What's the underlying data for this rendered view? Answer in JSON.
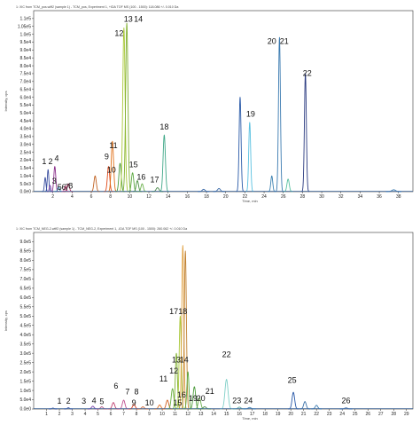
{
  "chart_data": [
    {
      "type": "line",
      "header": "1: XIC from TCM_pos.wiff2 (sample 1) - TCM_pos, Experiment 1, +IDA TOF MS (100 - 1500): 118.086 +/- 0.010 Da",
      "xlabel": "Time, min",
      "ylabel": "Intensity, cps",
      "xlim": [
        0,
        39.5
      ],
      "ylim": [
        0,
        115000.0
      ],
      "x_ticks": [
        2,
        4,
        6,
        8,
        10,
        12,
        14,
        16,
        18,
        20,
        22,
        24,
        26,
        28,
        30,
        32,
        34,
        36,
        38
      ],
      "y_ticks": [
        {
          "value": 0,
          "label": "0.0e0"
        },
        {
          "value": 5000,
          "label": "5.0e3"
        },
        {
          "value": 10000,
          "label": "1.0e4"
        },
        {
          "value": 15000,
          "label": "1.5e4"
        },
        {
          "value": 20000,
          "label": "2.0e4"
        },
        {
          "value": 25000,
          "label": "2.5e4"
        },
        {
          "value": 30000,
          "label": "3.0e4"
        },
        {
          "value": 35000,
          "label": "3.5e4"
        },
        {
          "value": 40000,
          "label": "4.0e4"
        },
        {
          "value": 45000,
          "label": "4.5e4"
        },
        {
          "value": 50000,
          "label": "5.0e4"
        },
        {
          "value": 55000,
          "label": "5.5e4"
        },
        {
          "value": 60000,
          "label": "6.0e4"
        },
        {
          "value": 65000,
          "label": "6.5e4"
        },
        {
          "value": 70000,
          "label": "7.0e4"
        },
        {
          "value": 75000,
          "label": "7.5e4"
        },
        {
          "value": 80000,
          "label": "8.0e4"
        },
        {
          "value": 85000,
          "label": "8.5e4"
        },
        {
          "value": 90000,
          "label": "9.0e4"
        },
        {
          "value": 95000,
          "label": "9.5e4"
        },
        {
          "value": 100000,
          "label": "1.0e5"
        },
        {
          "value": 105000,
          "label": "1.05e5"
        },
        {
          "value": 110000,
          "label": "1.1e5"
        }
      ],
      "peaks": [
        {
          "x": 1.2,
          "h": 9000,
          "w": 0.08,
          "color": "#3b4fa0"
        },
        {
          "x": 1.5,
          "h": 14000,
          "w": 0.08,
          "color": "#3b4fa0"
        },
        {
          "x": 1.7,
          "h": 4000,
          "w": 0.08,
          "color": "#7a3fa8"
        },
        {
          "x": 2.2,
          "h": 16000,
          "w": 0.1,
          "color": "#8a2f8a"
        },
        {
          "x": 2.6,
          "h": 3000,
          "w": 0.1,
          "color": "#2f7fa8"
        },
        {
          "x": 3.3,
          "h": 3500,
          "w": 0.1,
          "color": "#d04080"
        },
        {
          "x": 3.6,
          "h": 5000,
          "w": 0.12,
          "color": "#b03060"
        },
        {
          "x": 6.4,
          "h": 10000,
          "w": 0.12,
          "color": "#c06020"
        },
        {
          "x": 7.8,
          "h": 16000,
          "w": 0.12,
          "color": "#e04818"
        },
        {
          "x": 8.2,
          "h": 32000,
          "w": 0.12,
          "color": "#e07018"
        },
        {
          "x": 9.0,
          "h": 18000,
          "w": 0.12,
          "color": "#4a9a3a"
        },
        {
          "x": 9.4,
          "h": 104000,
          "w": 0.12,
          "color": "#a8c838"
        },
        {
          "x": 9.7,
          "h": 107000,
          "w": 0.12,
          "color": "#80b030"
        },
        {
          "x": 10.3,
          "h": 12000,
          "w": 0.12,
          "color": "#5aa840"
        },
        {
          "x": 10.8,
          "h": 7000,
          "w": 0.12,
          "color": "#4a9040"
        },
        {
          "x": 11.3,
          "h": 5000,
          "w": 0.12,
          "color": "#6ab04a"
        },
        {
          "x": 12.9,
          "h": 2500,
          "w": 0.15,
          "color": "#4a8a4a"
        },
        {
          "x": 13.6,
          "h": 36000,
          "w": 0.12,
          "color": "#40a888"
        },
        {
          "x": 17.7,
          "h": 1500,
          "w": 0.15,
          "color": "#3a6aa8"
        },
        {
          "x": 19.3,
          "h": 2000,
          "w": 0.15,
          "color": "#3a6aa8"
        },
        {
          "x": 21.5,
          "h": 60000,
          "w": 0.1,
          "color": "#2a5aa8"
        },
        {
          "x": 22.5,
          "h": 44000,
          "w": 0.1,
          "color": "#58c0e0"
        },
        {
          "x": 24.8,
          "h": 10000,
          "w": 0.1,
          "color": "#3a80b0"
        },
        {
          "x": 25.6,
          "h": 98000,
          "w": 0.1,
          "color": "#3a7ab0"
        },
        {
          "x": 26.5,
          "h": 8000,
          "w": 0.12,
          "color": "#58c0a0"
        },
        {
          "x": 28.3,
          "h": 75000,
          "w": 0.1,
          "color": "#2a3a80"
        },
        {
          "x": 37.5,
          "h": 1200,
          "w": 0.2,
          "color": "#3a7ab0"
        }
      ],
      "annotations": [
        {
          "text": "1",
          "x": 1.1,
          "y": 17500
        },
        {
          "text": "2",
          "x": 1.75,
          "y": 17500
        },
        {
          "text": "3",
          "x": 2.15,
          "y": 5000
        },
        {
          "text": "4",
          "x": 2.4,
          "y": 19500
        },
        {
          "text": "5",
          "x": 2.7,
          "y": 1200
        },
        {
          "text": "6",
          "x": 3.15,
          "y": 1200
        },
        {
          "text": "7",
          "x": 3.5,
          "y": 1200
        },
        {
          "text": "8",
          "x": 3.85,
          "y": 2000
        },
        {
          "text": "9",
          "x": 7.6,
          "y": 20500
        },
        {
          "text": "10",
          "x": 8.1,
          "y": 12000
        },
        {
          "text": "11",
          "x": 8.3,
          "y": 27500
        },
        {
          "text": "12",
          "x": 8.9,
          "y": 99000
        },
        {
          "text": "13",
          "x": 9.85,
          "y": 108000
        },
        {
          "text": "14",
          "x": 10.9,
          "y": 108000
        },
        {
          "text": "15",
          "x": 10.4,
          "y": 15500
        },
        {
          "text": "16",
          "x": 11.2,
          "y": 7500
        },
        {
          "text": "17",
          "x": 12.6,
          "y": 6000
        },
        {
          "text": "18",
          "x": 13.6,
          "y": 39500
        },
        {
          "text": "19",
          "x": 22.6,
          "y": 47500
        },
        {
          "text": "20",
          "x": 24.8,
          "y": 94000
        },
        {
          "text": "21",
          "x": 26.1,
          "y": 94000
        },
        {
          "text": "22",
          "x": 28.5,
          "y": 73500
        }
      ]
    },
    {
      "type": "line",
      "header": "1: XIC from TCM_NEG-2.wiff2 (sample 1) - TCM_NEG-2, Experiment 1, -IDA TOF MS (100 - 1500): 260.062 +/- 0.010 Da",
      "xlabel": "Time, min",
      "ylabel": "Intensity, cps",
      "xlim": [
        0,
        29.5
      ],
      "ylim": [
        0,
        950000.0
      ],
      "x_ticks": [
        1,
        2,
        3,
        4,
        5,
        6,
        7,
        8,
        9,
        10,
        11,
        12,
        13,
        14,
        15,
        16,
        17,
        18,
        19,
        20,
        21,
        22,
        23,
        24,
        25,
        26,
        27,
        28,
        29
      ],
      "y_ticks": [
        {
          "value": 0,
          "label": "0.0e0"
        },
        {
          "value": 50000,
          "label": "5.0e4"
        },
        {
          "value": 100000,
          "label": "1.0e5"
        },
        {
          "value": 150000,
          "label": "1.5e5"
        },
        {
          "value": 200000,
          "label": "2.0e5"
        },
        {
          "value": 250000,
          "label": "2.5e5"
        },
        {
          "value": 300000,
          "label": "3.0e5"
        },
        {
          "value": 350000,
          "label": "3.5e5"
        },
        {
          "value": 400000,
          "label": "4.0e5"
        },
        {
          "value": 450000,
          "label": "4.5e5"
        },
        {
          "value": 500000,
          "label": "5.0e5"
        },
        {
          "value": 550000,
          "label": "5.5e5"
        },
        {
          "value": 600000,
          "label": "6.0e5"
        },
        {
          "value": 650000,
          "label": "6.5e5"
        },
        {
          "value": 700000,
          "label": "7.0e5"
        },
        {
          "value": 750000,
          "label": "7.5e5"
        },
        {
          "value": 800000,
          "label": "8.0e5"
        },
        {
          "value": 850000,
          "label": "8.5e5"
        },
        {
          "value": 900000,
          "label": "9.0e5"
        }
      ],
      "peaks": [
        {
          "x": 1.5,
          "h": 5000,
          "w": 0.08,
          "color": "#3b4fa0"
        },
        {
          "x": 2.7,
          "h": 7000,
          "w": 0.08,
          "color": "#3b4fa0"
        },
        {
          "x": 4.6,
          "h": 15000,
          "w": 0.1,
          "color": "#7a3fa8"
        },
        {
          "x": 5.3,
          "h": 12000,
          "w": 0.1,
          "color": "#b05080"
        },
        {
          "x": 6.2,
          "h": 35000,
          "w": 0.1,
          "color": "#c04070"
        },
        {
          "x": 7.0,
          "h": 48000,
          "w": 0.1,
          "color": "#c05090"
        },
        {
          "x": 7.8,
          "h": 25000,
          "w": 0.1,
          "color": "#e04020"
        },
        {
          "x": 8.5,
          "h": 12000,
          "w": 0.1,
          "color": "#d06030"
        },
        {
          "x": 9.8,
          "h": 22000,
          "w": 0.1,
          "color": "#e07020"
        },
        {
          "x": 10.4,
          "h": 48000,
          "w": 0.1,
          "color": "#d06020"
        },
        {
          "x": 10.8,
          "h": 110000,
          "w": 0.1,
          "color": "#6ab040"
        },
        {
          "x": 11.1,
          "h": 300000,
          "w": 0.08,
          "color": "#80b030"
        },
        {
          "x": 11.4,
          "h": 500000,
          "w": 0.08,
          "color": "#a8c838"
        },
        {
          "x": 11.6,
          "h": 880000,
          "w": 0.08,
          "color": "#e0a040"
        },
        {
          "x": 11.8,
          "h": 850000,
          "w": 0.08,
          "color": "#c08030"
        },
        {
          "x": 12.0,
          "h": 200000,
          "w": 0.08,
          "color": "#5aa840"
        },
        {
          "x": 12.5,
          "h": 120000,
          "w": 0.1,
          "color": "#4a9a3a"
        },
        {
          "x": 12.9,
          "h": 60000,
          "w": 0.1,
          "color": "#6ab04a"
        },
        {
          "x": 13.3,
          "h": 12000,
          "w": 0.12,
          "color": "#4a8a4a"
        },
        {
          "x": 15.0,
          "h": 160000,
          "w": 0.12,
          "color": "#80d0c8"
        },
        {
          "x": 16.0,
          "h": 10000,
          "w": 0.12,
          "color": "#58a8a0"
        },
        {
          "x": 16.8,
          "h": 8000,
          "w": 0.12,
          "color": "#3a80b0"
        },
        {
          "x": 20.2,
          "h": 90000,
          "w": 0.1,
          "color": "#2a5aa8"
        },
        {
          "x": 21.1,
          "h": 40000,
          "w": 0.1,
          "color": "#3a70a8"
        },
        {
          "x": 22.0,
          "h": 20000,
          "w": 0.1,
          "color": "#3a7ab0"
        },
        {
          "x": 24.3,
          "h": 6000,
          "w": 0.12,
          "color": "#3a6aa8"
        }
      ],
      "annotations": [
        {
          "text": "1",
          "x": 2.0,
          "y": 28000
        },
        {
          "text": "2",
          "x": 2.7,
          "y": 28000
        },
        {
          "text": "3",
          "x": 3.9,
          "y": 28000
        },
        {
          "text": "4",
          "x": 4.7,
          "y": 32000
        },
        {
          "text": "5",
          "x": 5.3,
          "y": 26000
        },
        {
          "text": "6",
          "x": 6.4,
          "y": 110000
        },
        {
          "text": "7",
          "x": 7.3,
          "y": 78000
        },
        {
          "text": "8",
          "x": 8.0,
          "y": 78000
        },
        {
          "text": "9",
          "x": 7.8,
          "y": 18000
        },
        {
          "text": "10",
          "x": 9.0,
          "y": 18000
        },
        {
          "text": "11",
          "x": 10.1,
          "y": 148000
        },
        {
          "text": "12",
          "x": 10.9,
          "y": 190000
        },
        {
          "text": "13",
          "x": 11.1,
          "y": 250000
        },
        {
          "text": "14",
          "x": 11.7,
          "y": 250000
        },
        {
          "text": "15",
          "x": 11.2,
          "y": 18000
        },
        {
          "text": "16",
          "x": 11.5,
          "y": 62000
        },
        {
          "text": "17",
          "x": 10.9,
          "y": 510000
        },
        {
          "text": "18",
          "x": 11.6,
          "y": 510000
        },
        {
          "text": "19",
          "x": 12.4,
          "y": 42000
        },
        {
          "text": "20",
          "x": 13.0,
          "y": 42000
        },
        {
          "text": "21",
          "x": 13.7,
          "y": 82000
        },
        {
          "text": "22",
          "x": 15.0,
          "y": 280000
        },
        {
          "text": "23",
          "x": 15.8,
          "y": 30000
        },
        {
          "text": "24",
          "x": 16.7,
          "y": 30000
        },
        {
          "text": "25",
          "x": 20.1,
          "y": 142000
        },
        {
          "text": "26",
          "x": 24.3,
          "y": 30000
        }
      ]
    }
  ]
}
